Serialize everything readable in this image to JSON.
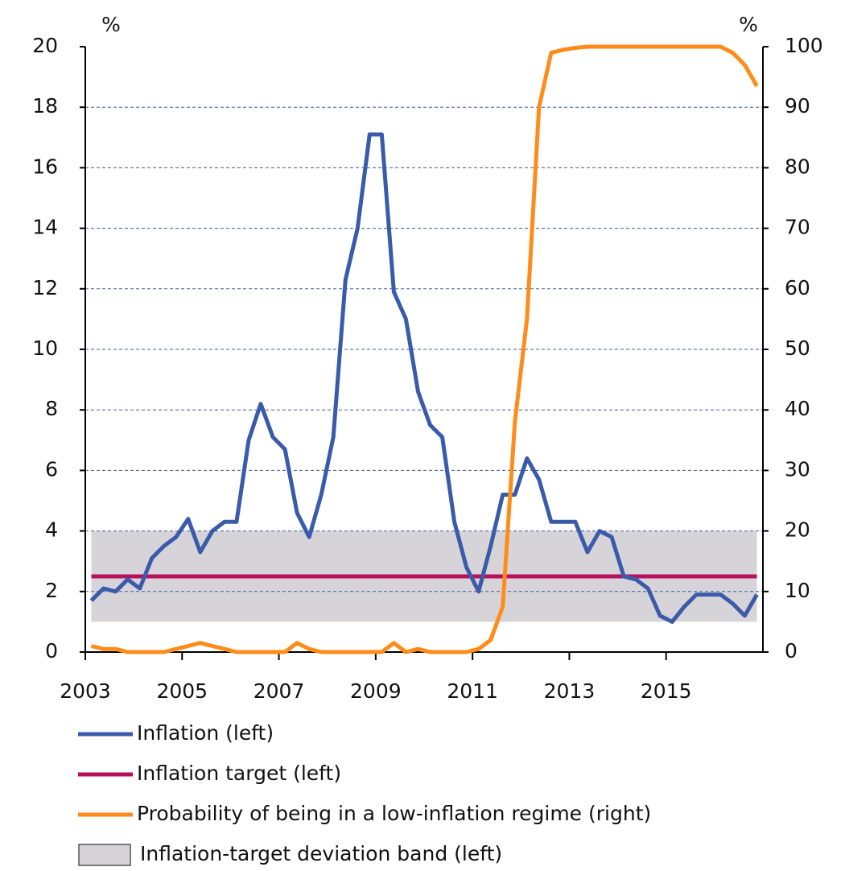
{
  "chart_data": {
    "type": "line",
    "ylabel": "%",
    "y2label": "%",
    "x": [
      2003.125,
      2003.375,
      2003.625,
      2003.875,
      2004.125,
      2004.375,
      2004.625,
      2004.875,
      2005.125,
      2005.375,
      2005.625,
      2005.875,
      2006.125,
      2006.375,
      2006.625,
      2006.875,
      2007.125,
      2007.375,
      2007.625,
      2007.875,
      2008.125,
      2008.375,
      2008.625,
      2008.875,
      2009.125,
      2009.375,
      2009.625,
      2009.875,
      2010.125,
      2010.375,
      2010.625,
      2010.875,
      2011.125,
      2011.375,
      2011.625,
      2011.875,
      2012.125,
      2012.375,
      2012.625,
      2012.875,
      2013.125,
      2013.375,
      2013.625,
      2013.875,
      2014.125,
      2014.375,
      2014.625,
      2014.875,
      2015.125,
      2015.375,
      2015.625,
      2015.875,
      2016.125,
      2016.375,
      2016.625,
      2016.875
    ],
    "xlim": [
      2003,
      2017
    ],
    "xticks": [
      2003,
      2005,
      2007,
      2009,
      2011,
      2013,
      2015
    ],
    "ylim": [
      0,
      20
    ],
    "yticks": [
      0,
      2,
      4,
      6,
      8,
      10,
      12,
      14,
      16,
      18,
      20
    ],
    "y2lim": [
      0,
      100
    ],
    "y2ticks": [
      0,
      10,
      20,
      30,
      40,
      50,
      60,
      70,
      80,
      90,
      100
    ],
    "grid": true,
    "legend": "bottom",
    "series": [
      {
        "name": "Inflation (left)",
        "color": "#3a5ba9",
        "values": [
          1.7,
          2.1,
          2.0,
          2.4,
          2.1,
          3.1,
          3.5,
          3.8,
          4.4,
          3.3,
          4.0,
          4.3,
          4.3,
          7.0,
          8.2,
          7.1,
          6.7,
          4.6,
          3.8,
          5.2,
          7.1,
          12.3,
          14.0,
          17.1,
          17.1,
          11.9,
          11.0,
          8.6,
          7.5,
          7.1,
          4.3,
          2.8,
          2.0,
          3.5,
          5.2,
          5.2,
          6.4,
          5.7,
          4.3,
          4.3,
          4.3,
          3.3,
          4.0,
          3.8,
          2.5,
          2.4,
          2.1,
          1.2,
          1.0,
          1.5,
          1.9,
          1.9,
          1.9,
          1.6,
          1.2,
          1.9
        ]
      },
      {
        "name": "Inflation target (left)",
        "color": "#b8105c",
        "values": [
          2.5,
          2.5,
          2.5,
          2.5,
          2.5,
          2.5,
          2.5,
          2.5,
          2.5,
          2.5,
          2.5,
          2.5,
          2.5,
          2.5,
          2.5,
          2.5,
          2.5,
          2.5,
          2.5,
          2.5,
          2.5,
          2.5,
          2.5,
          2.5,
          2.5,
          2.5,
          2.5,
          2.5,
          2.5,
          2.5,
          2.5,
          2.5,
          2.5,
          2.5,
          2.5,
          2.5,
          2.5,
          2.5,
          2.5,
          2.5,
          2.5,
          2.5,
          2.5,
          2.5,
          2.5,
          2.5,
          2.5,
          2.5,
          2.5,
          2.5,
          2.5,
          2.5,
          2.5,
          2.5,
          2.5,
          2.5
        ]
      },
      {
        "name": "Probability of being in a low-inflation regime (right)",
        "color": "#ff8c1a",
        "axis": "y2",
        "values": [
          1,
          0.5,
          0.5,
          0,
          0,
          0,
          0,
          0.5,
          1,
          1.5,
          1,
          0.5,
          0,
          0,
          0,
          0,
          0,
          1.5,
          0.5,
          0,
          0,
          0,
          0,
          0,
          0,
          1.5,
          0,
          0.5,
          0,
          0,
          0,
          0,
          0.5,
          2,
          7.5,
          38,
          55,
          90,
          99,
          99.5,
          99.8,
          100,
          100,
          100,
          100,
          100,
          100,
          100,
          100,
          100,
          100,
          100,
          100,
          99,
          97,
          93.5
        ]
      }
    ],
    "band": {
      "name": "Inflation-target deviation band (left)",
      "color": "#d6d4d8",
      "lower": 1,
      "upper": 4
    }
  }
}
